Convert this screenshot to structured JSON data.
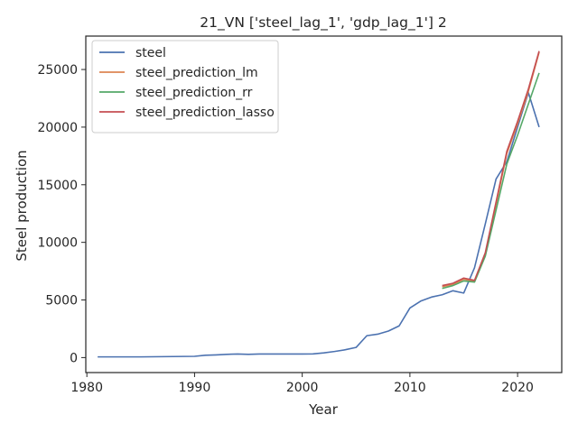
{
  "chart_data": {
    "type": "line",
    "title": "21_VN ['steel_lag_1', 'gdp_lag_1'] 2",
    "xlabel": "Year",
    "ylabel": "Steel production",
    "xlim": [
      1979.9,
      2024.1
    ],
    "ylim": [
      -1300,
      27900
    ],
    "xticks": [
      1980,
      1990,
      2000,
      2010,
      2020
    ],
    "yticks": [
      0,
      5000,
      10000,
      15000,
      20000,
      25000
    ],
    "legend_position": "top-left",
    "grid": false,
    "series": [
      {
        "name": "steel",
        "color": "#4c72b0",
        "x": [
          1981,
          1982,
          1983,
          1984,
          1985,
          1986,
          1987,
          1988,
          1989,
          1990,
          1991,
          1992,
          1993,
          1994,
          1995,
          1996,
          1997,
          1998,
          1999,
          2000,
          2001,
          2002,
          2003,
          2004,
          2005,
          2006,
          2007,
          2008,
          2009,
          2010,
          2011,
          2012,
          2013,
          2014,
          2015,
          2016,
          2017,
          2018,
          2019,
          2020,
          2021,
          2022
        ],
        "y": [
          60,
          60,
          60,
          60,
          60,
          70,
          80,
          90,
          100,
          110,
          200,
          230,
          280,
          310,
          280,
          310,
          310,
          310,
          310,
          310,
          320,
          410,
          530,
          680,
          880,
          1900,
          2030,
          2300,
          2750,
          4300,
          4900,
          5250,
          5450,
          5800,
          5600,
          7800,
          11600,
          15500,
          17000,
          20000,
          23000,
          20000
        ]
      },
      {
        "name": "steel_prediction_lm",
        "color": "#dd8452",
        "x": [
          2013,
          2014,
          2015,
          2016,
          2017,
          2018,
          2019,
          2020,
          2021,
          2022
        ],
        "y": [
          6150,
          6350,
          6800,
          6600,
          9000,
          13300,
          17700,
          20300,
          23100,
          26500
        ]
      },
      {
        "name": "steel_prediction_rr",
        "color": "#55a868",
        "x": [
          2013,
          2014,
          2015,
          2016,
          2017,
          2018,
          2019,
          2020,
          2021,
          2022
        ],
        "y": [
          6000,
          6250,
          6650,
          6550,
          8800,
          12800,
          16800,
          19300,
          22000,
          24700
        ]
      },
      {
        "name": "steel_prediction_lasso",
        "color": "#c44e52",
        "x": [
          2013,
          2014,
          2015,
          2016,
          2017,
          2018,
          2019,
          2020,
          2021,
          2022
        ],
        "y": [
          6250,
          6450,
          6900,
          6700,
          9100,
          13500,
          17900,
          20500,
          23300,
          26600
        ]
      }
    ]
  }
}
